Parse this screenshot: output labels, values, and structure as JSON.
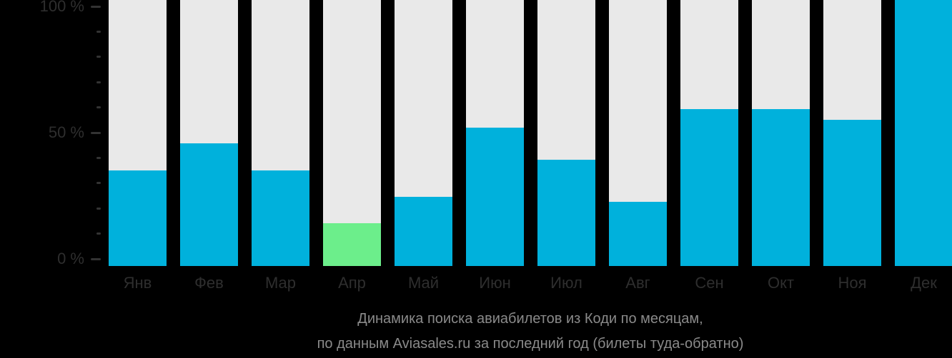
{
  "colors": {
    "background": "#000000",
    "bar": "#00B1DC",
    "bar_highlight": "#6CEE8B",
    "bar_track": "#E9E9E9",
    "tick": "#333333",
    "axis_text": "#2E2E2E",
    "caption_text": "#8A8A8A"
  },
  "y_axis": {
    "ticks": [
      {
        "value": 100,
        "label": "100 %"
      },
      {
        "value": 90,
        "label": ""
      },
      {
        "value": 80,
        "label": ""
      },
      {
        "value": 70,
        "label": ""
      },
      {
        "value": 60,
        "label": ""
      },
      {
        "value": 50,
        "label": "50 %"
      },
      {
        "value": 40,
        "label": ""
      },
      {
        "value": 30,
        "label": ""
      },
      {
        "value": 20,
        "label": ""
      },
      {
        "value": 10,
        "label": ""
      },
      {
        "value": 0,
        "label": "0 %"
      }
    ]
  },
  "chart_data": {
    "type": "bar",
    "categories": [
      "Янв",
      "Фев",
      "Мар",
      "Апр",
      "Май",
      "Июн",
      "Июл",
      "Авг",
      "Сен",
      "Окт",
      "Ноя",
      "Дек"
    ],
    "values": [
      36,
      46,
      36,
      16,
      26,
      52,
      40,
      24,
      59,
      59,
      55,
      100
    ],
    "highlight_index": 3,
    "highlight_category": "Апр",
    "title": "Динамика поиска авиабилетов из Коди по месяцам,",
    "subtitle": "по данным Aviasales.ru за последний год (билеты туда-обратно)",
    "xlabel": "",
    "ylabel": "",
    "ylim": [
      0,
      100
    ],
    "grid": "off",
    "legend": "none",
    "y_tick_step_minor": 10,
    "y_tick_step_major": 50
  }
}
